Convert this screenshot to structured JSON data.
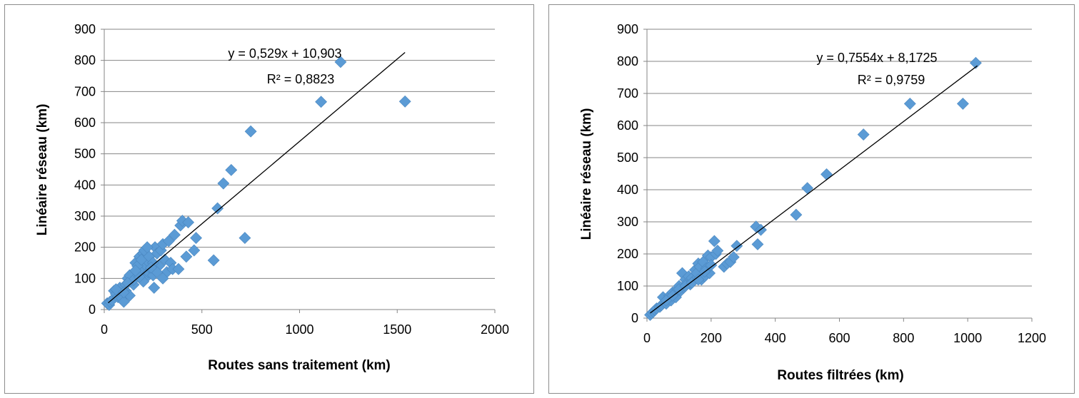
{
  "colors": {
    "marker": "#5b9bd5",
    "grid": "#868686",
    "trendline": "#000000"
  },
  "chart_data": [
    {
      "type": "scatter",
      "xlabel": "Routes sans traitement (km)",
      "ylabel": "Linéaire réseau (km)",
      "xlim": [
        0,
        2000
      ],
      "ylim": [
        0,
        900
      ],
      "xticks": [
        "0",
        "500",
        "1000",
        "1500",
        "2000"
      ],
      "yticks": [
        "0",
        "100",
        "200",
        "300",
        "400",
        "500",
        "600",
        "700",
        "800",
        "900"
      ],
      "grid": "horizontal",
      "legend": "none",
      "trendline": {
        "slope": 0.529,
        "intercept": 10.903,
        "x_range": [
          20,
          1540
        ]
      },
      "equation": "y = 0,529x + 10,903",
      "r2": "R² = 0,8823",
      "x": [
        15,
        25,
        30,
        40,
        50,
        60,
        70,
        80,
        90,
        100,
        110,
        120,
        130,
        140,
        150,
        160,
        170,
        175,
        180,
        190,
        200,
        205,
        210,
        215,
        220,
        225,
        230,
        240,
        250,
        255,
        260,
        270,
        280,
        290,
        300,
        310,
        320,
        330,
        340,
        350,
        360,
        380,
        390,
        400,
        420,
        430,
        460,
        470,
        560,
        580,
        610,
        650,
        720,
        750,
        1110,
        1210,
        1540,
        60,
        110,
        130,
        150,
        170,
        190,
        200,
        230,
        250,
        270,
        300,
        220,
        240,
        180,
        160,
        120,
        100
      ],
      "y": [
        20,
        15,
        25,
        30,
        60,
        50,
        40,
        70,
        35,
        25,
        60,
        100,
        45,
        90,
        80,
        150,
        110,
        130,
        170,
        120,
        180,
        190,
        100,
        140,
        160,
        120,
        150,
        130,
        110,
        70,
        200,
        180,
        140,
        190,
        210,
        160,
        120,
        220,
        150,
        130,
        240,
        130,
        270,
        285,
        170,
        280,
        190,
        230,
        158,
        325,
        405,
        448,
        230,
        572,
        667,
        795,
        668,
        65,
        80,
        110,
        95,
        140,
        160,
        90,
        170,
        150,
        120,
        100,
        200,
        135,
        105,
        125,
        85,
        55
      ]
    },
    {
      "type": "scatter",
      "xlabel": "Routes filtrées (km)",
      "ylabel": "Linéaire réseau (km)",
      "xlim": [
        0,
        1200
      ],
      "ylim": [
        0,
        900
      ],
      "xticks": [
        "0",
        "200",
        "400",
        "600",
        "800",
        "1000",
        "1200"
      ],
      "yticks": [
        "0",
        "100",
        "200",
        "300",
        "400",
        "500",
        "600",
        "700",
        "800",
        "900"
      ],
      "grid": "horizontal",
      "legend": "none",
      "trendline": {
        "slope": 0.7554,
        "intercept": 8.1725,
        "x_range": [
          10,
          1030
        ]
      },
      "equation": "y = 0,7554x + 8,1725",
      "r2": "R² = 0,9759",
      "x": [
        10,
        15,
        20,
        25,
        30,
        40,
        45,
        50,
        55,
        60,
        65,
        70,
        75,
        80,
        85,
        90,
        95,
        100,
        105,
        110,
        115,
        120,
        125,
        130,
        135,
        140,
        145,
        150,
        155,
        160,
        165,
        170,
        175,
        180,
        185,
        190,
        195,
        200,
        210,
        215,
        220,
        240,
        250,
        260,
        270,
        280,
        340,
        345,
        355,
        465,
        500,
        560,
        675,
        820,
        985,
        1025,
        60,
        80,
        100,
        120,
        140,
        160,
        180,
        200
      ],
      "y": [
        10,
        15,
        20,
        25,
        30,
        35,
        40,
        65,
        50,
        45,
        60,
        70,
        55,
        80,
        75,
        65,
        90,
        100,
        85,
        140,
        95,
        120,
        110,
        130,
        105,
        125,
        115,
        150,
        140,
        170,
        160,
        120,
        175,
        130,
        155,
        195,
        140,
        190,
        240,
        200,
        210,
        160,
        170,
        175,
        190,
        225,
        285,
        230,
        275,
        322,
        405,
        448,
        572,
        668,
        668,
        795,
        55,
        70,
        90,
        100,
        110,
        120,
        145,
        165
      ]
    }
  ]
}
